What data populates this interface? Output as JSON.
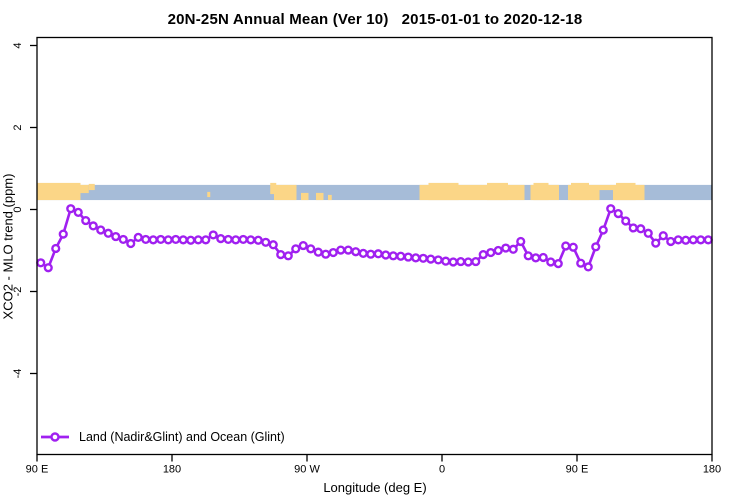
{
  "chart_data": {
    "type": "line",
    "title": "20N-25N Annual Mean (Ver 10)   2015-01-01 to 2020-12-18",
    "xlabel": "Longitude (deg E)",
    "ylabel": "XCO2 - MLO trend (ppm)",
    "xlim": [
      90,
      540
    ],
    "ylim": [
      -6,
      4.2
    ],
    "grid": false,
    "legend_position": "bottom-left-inside",
    "x_ticks": [
      {
        "lon": 90,
        "label": "90 E"
      },
      {
        "lon": 180,
        "label": "180"
      },
      {
        "lon": 270,
        "label": "90 W"
      },
      {
        "lon": 360,
        "label": "0"
      },
      {
        "lon": 450,
        "label": "90 E"
      },
      {
        "lon": 540,
        "label": "180"
      }
    ],
    "y_ticks": [
      {
        "v": 4,
        "label": "4"
      },
      {
        "v": 2,
        "label": "2"
      },
      {
        "v": 0,
        "label": "0"
      },
      {
        "v": -2,
        "label": "-2"
      },
      {
        "v": -4,
        "label": "-4"
      }
    ],
    "colors": {
      "series": "#a020f0",
      "marker_fill": "#ffffff",
      "ocean": "#a6bcd8",
      "land": "#fbd687",
      "axis": "#000000"
    },
    "map_band": {
      "ppm_top": 0.6,
      "ppm_bottom": 0.23,
      "ocean_span": [
        90,
        540
      ],
      "land_segments": [
        {
          "from": 90,
          "to": 119,
          "t": -2,
          "b": 0
        },
        {
          "from": 119,
          "to": 124.5,
          "t": 0,
          "b": 7
        },
        {
          "from": 124.5,
          "to": 128.5,
          "t": -1,
          "b": 10
        },
        {
          "from": 203.5,
          "to": 205.5,
          "t": 7,
          "b": 3
        },
        {
          "from": 245.5,
          "to": 249.5,
          "t": -2,
          "b": 6
        },
        {
          "from": 248,
          "to": 263,
          "t": 0,
          "b": 0
        },
        {
          "from": 266,
          "to": 271,
          "t": 8,
          "b": 0
        },
        {
          "from": 276,
          "to": 281,
          "t": 8,
          "b": 0
        },
        {
          "from": 284,
          "to": 286.5,
          "t": 10,
          "b": 0
        },
        {
          "from": 345,
          "to": 415,
          "t": 0,
          "b": 0
        },
        {
          "from": 351,
          "to": 371,
          "t": -2,
          "b": 0
        },
        {
          "from": 390,
          "to": 404,
          "t": -2,
          "b": 0
        },
        {
          "from": 419,
          "to": 438,
          "t": 0,
          "b": 0
        },
        {
          "from": 421,
          "to": 431,
          "t": -2,
          "b": 0
        },
        {
          "from": 444,
          "to": 465,
          "t": 0,
          "b": 0
        },
        {
          "from": 446,
          "to": 458,
          "t": -2,
          "b": 0
        },
        {
          "from": 465,
          "to": 474,
          "t": 0,
          "b": 10
        },
        {
          "from": 474,
          "to": 495,
          "t": 0,
          "b": 0
        },
        {
          "from": 476,
          "to": 489,
          "t": -2,
          "b": 0
        }
      ]
    },
    "series": [
      {
        "name": "Land (Nadir&Glint) and Ocean (Glint)",
        "x": [
          92.5,
          97.5,
          102.5,
          107.5,
          112.5,
          117.5,
          122.5,
          127.5,
          132.5,
          137.5,
          142.5,
          147.5,
          152.5,
          157.5,
          162.5,
          167.5,
          172.5,
          177.5,
          182.5,
          187.5,
          192.5,
          197.5,
          202.5,
          207.5,
          212.5,
          217.5,
          222.5,
          227.5,
          232.5,
          237.5,
          242.5,
          247.5,
          252.5,
          257.5,
          262.5,
          267.5,
          272.5,
          277.5,
          282.5,
          287.5,
          292.5,
          297.5,
          302.5,
          307.5,
          312.5,
          317.5,
          322.5,
          327.5,
          332.5,
          337.5,
          342.5,
          347.5,
          352.5,
          357.5,
          362.5,
          367.5,
          372.5,
          377.5,
          382.5,
          387.5,
          392.5,
          397.5,
          402.5,
          407.5,
          412.5,
          417.5,
          422.5,
          427.5,
          432.5,
          437.5,
          442.5,
          447.5,
          452.5,
          457.5,
          462.5,
          467.5,
          472.5,
          477.5,
          482.5,
          487.5,
          492.5,
          497.5,
          502.5,
          507.5,
          512.5,
          517.5,
          522.5,
          527.5,
          532.5,
          537.5
        ],
        "y": [
          -1.3,
          -1.42,
          -0.95,
          -0.6,
          0.02,
          -0.07,
          -0.27,
          -0.4,
          -0.5,
          -0.58,
          -0.66,
          -0.73,
          -0.83,
          -0.68,
          -0.73,
          -0.74,
          -0.73,
          -0.74,
          -0.73,
          -0.74,
          -0.75,
          -0.74,
          -0.74,
          -0.62,
          -0.71,
          -0.73,
          -0.74,
          -0.73,
          -0.74,
          -0.75,
          -0.8,
          -0.86,
          -1.1,
          -1.13,
          -0.96,
          -0.88,
          -0.96,
          -1.04,
          -1.09,
          -1.05,
          -0.99,
          -0.99,
          -1.03,
          -1.07,
          -1.09,
          -1.08,
          -1.11,
          -1.13,
          -1.14,
          -1.16,
          -1.18,
          -1.19,
          -1.21,
          -1.23,
          -1.26,
          -1.28,
          -1.27,
          -1.28,
          -1.27,
          -1.1,
          -1.05,
          -1.0,
          -0.94,
          -0.97,
          -0.78,
          -1.13,
          -1.18,
          -1.17,
          -1.28,
          -1.32,
          -0.89,
          -0.92,
          -1.31,
          -1.4,
          -0.91,
          -0.5,
          0.02,
          -0.1,
          -0.28,
          -0.45,
          -0.47,
          -0.58,
          -0.82,
          -0.64,
          -0.78,
          -0.74,
          -0.75,
          -0.74,
          -0.74,
          -0.74
        ]
      }
    ],
    "legend": {
      "label": "Land (Nadir&Glint) and Ocean (Glint)"
    }
  }
}
